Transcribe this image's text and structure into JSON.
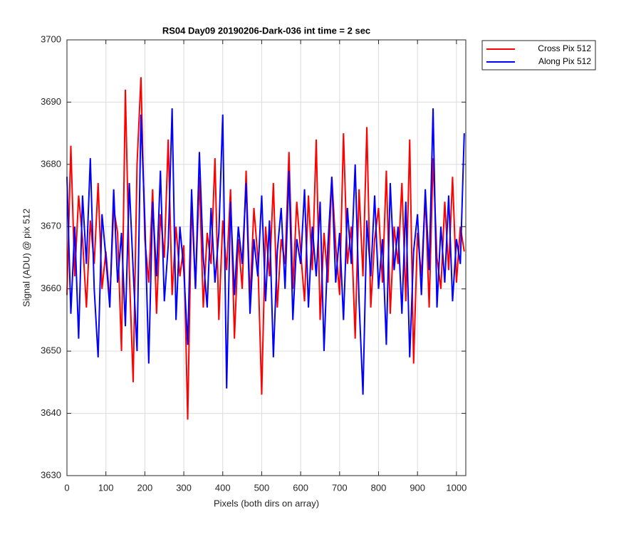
{
  "chart_data": {
    "type": "line",
    "title": "RS04 Day09 20190206-Dark-036 int time = 2 sec",
    "xlabel": "Pixels (both dirs on array)",
    "ylabel": "Signal (ADU) @ pix 512",
    "x": [
      0,
      10,
      20,
      30,
      40,
      50,
      60,
      70,
      80,
      90,
      100,
      110,
      120,
      130,
      140,
      150,
      160,
      170,
      180,
      190,
      200,
      210,
      220,
      230,
      240,
      250,
      260,
      270,
      280,
      290,
      300,
      310,
      320,
      330,
      340,
      350,
      360,
      370,
      380,
      390,
      400,
      410,
      420,
      430,
      440,
      450,
      460,
      470,
      480,
      490,
      500,
      510,
      520,
      530,
      540,
      550,
      560,
      570,
      580,
      590,
      600,
      610,
      620,
      630,
      640,
      650,
      660,
      670,
      680,
      690,
      700,
      710,
      720,
      730,
      740,
      750,
      760,
      770,
      780,
      790,
      800,
      810,
      820,
      830,
      840,
      850,
      860,
      870,
      880,
      890,
      900,
      910,
      920,
      930,
      940,
      950,
      960,
      970,
      980,
      990,
      1000,
      1010,
      1020
    ],
    "series": [
      {
        "name": "Cross Pix 512",
        "color": "#ff0000",
        "values": [
          3659,
          3683,
          3662,
          3675,
          3668,
          3657,
          3671,
          3664,
          3677,
          3660,
          3666,
          3658,
          3673,
          3669,
          3650,
          3692,
          3663,
          3645,
          3680,
          3694,
          3668,
          3661,
          3676,
          3656,
          3672,
          3665,
          3684,
          3659,
          3670,
          3662,
          3667,
          3639,
          3674,
          3660,
          3678,
          3657,
          3669,
          3664,
          3681,
          3655,
          3671,
          3663,
          3676,
          3652,
          3668,
          3660,
          3679,
          3658,
          3673,
          3665,
          3643,
          3670,
          3662,
          3677,
          3657,
          3668,
          3664,
          3682,
          3660,
          3674,
          3666,
          3658,
          3675,
          3663,
          3684,
          3655,
          3669,
          3661,
          3678,
          3667,
          3659,
          3685,
          3664,
          3670,
          3652,
          3676,
          3662,
          3686,
          3657,
          3668,
          3673,
          3661,
          3679,
          3656,
          3670,
          3664,
          3677,
          3658,
          3684,
          3648,
          3669,
          3662,
          3675,
          3657,
          3681,
          3665,
          3660,
          3674,
          3663,
          3678,
          3661,
          3670,
          3666
        ]
      },
      {
        "name": "Along Pix 512",
        "color": "#0000ff",
        "values": [
          3678,
          3656,
          3670,
          3652,
          3675,
          3664,
          3681,
          3660,
          3649,
          3672,
          3665,
          3657,
          3676,
          3661,
          3669,
          3654,
          3677,
          3663,
          3650,
          3688,
          3671,
          3648,
          3674,
          3662,
          3679,
          3658,
          3667,
          3689,
          3655,
          3670,
          3663,
          3651,
          3676,
          3660,
          3682,
          3665,
          3657,
          3673,
          3661,
          3669,
          3688,
          3644,
          3674,
          3659,
          3670,
          3664,
          3677,
          3656,
          3668,
          3662,
          3675,
          3658,
          3671,
          3649,
          3666,
          3673,
          3660,
          3679,
          3655,
          3668,
          3664,
          3676,
          3657,
          3670,
          3662,
          3674,
          3650,
          3667,
          3678,
          3661,
          3669,
          3655,
          3673,
          3664,
          3680,
          3658,
          3643,
          3671,
          3662,
          3675,
          3660,
          3668,
          3651,
          3677,
          3663,
          3670,
          3656,
          3674,
          3649,
          3666,
          3672,
          3659,
          3676,
          3663,
          3689,
          3657,
          3670,
          3661,
          3675,
          3658,
          3668,
          3664,
          3685
        ]
      }
    ],
    "xlim": [
      0,
      1024
    ],
    "ylim": [
      3630,
      3700
    ],
    "xticks": [
      0,
      100,
      200,
      300,
      400,
      500,
      600,
      700,
      800,
      900,
      1000
    ],
    "yticks": [
      3630,
      3640,
      3650,
      3660,
      3670,
      3680,
      3690,
      3700
    ],
    "grid": true,
    "legend": "outside-top-right"
  }
}
